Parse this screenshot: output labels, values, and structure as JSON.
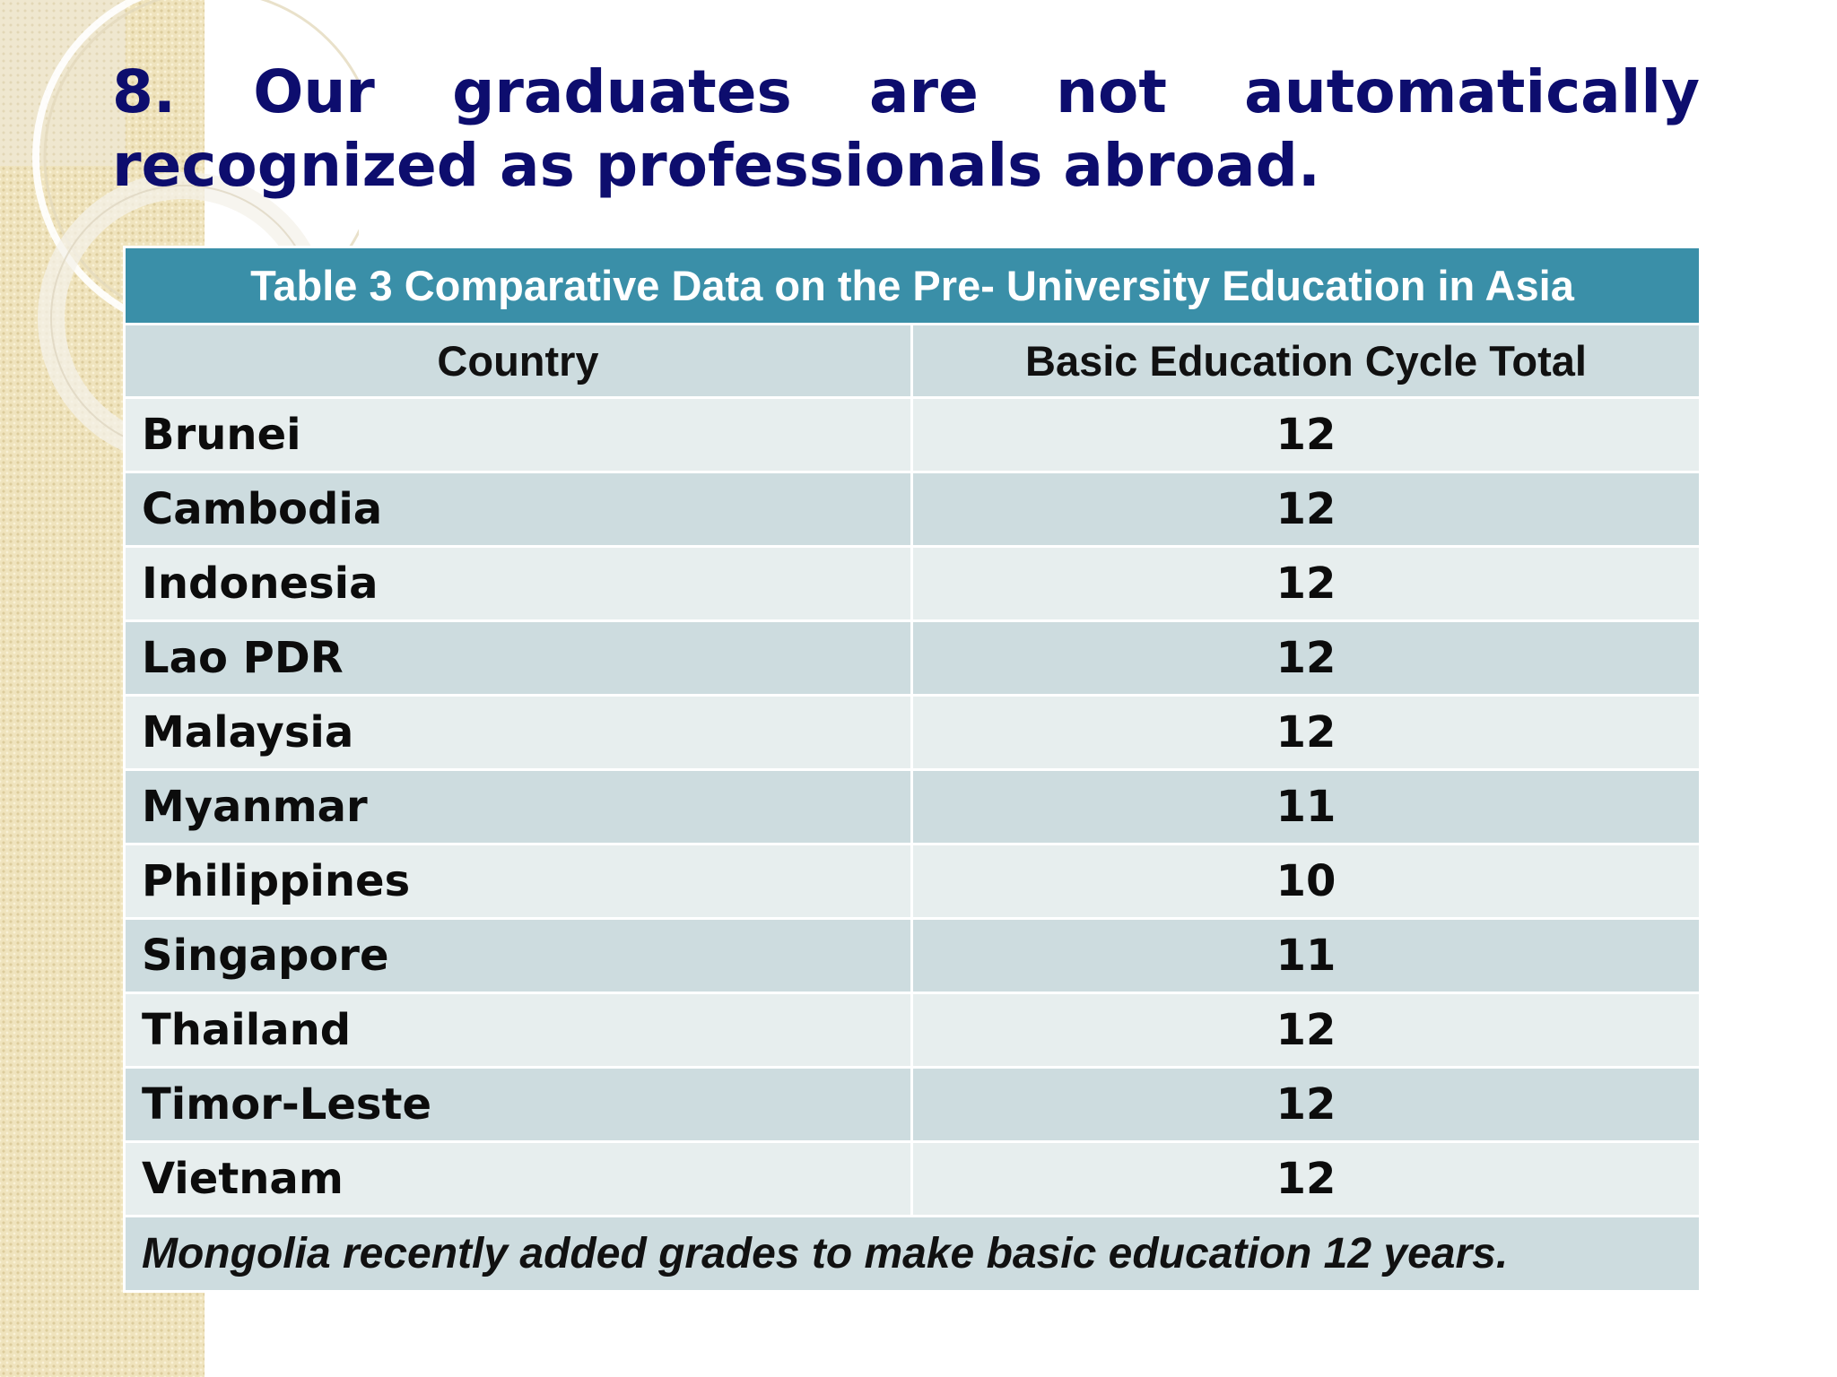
{
  "slide": {
    "title": "8. Our graduates are not automatically recognized as  professionals abroad."
  },
  "table": {
    "caption": "Table 3 Comparative Data on the Pre- University Education in Asia",
    "columns": [
      "Country",
      "Basic Education Cycle Total"
    ],
    "rows": [
      {
        "country": "Brunei",
        "years": "12"
      },
      {
        "country": "Cambodia",
        "years": "12"
      },
      {
        "country": "Indonesia",
        "years": "12"
      },
      {
        "country": "Lao PDR",
        "years": "12"
      },
      {
        "country": "Malaysia",
        "years": "12"
      },
      {
        "country": "Myanmar",
        "years": "11"
      },
      {
        "country": "Philippines",
        "years": "10"
      },
      {
        "country": "Singapore",
        "years": "11"
      },
      {
        "country": "Thailand",
        "years": "12"
      },
      {
        "country": "Timor-Leste",
        "years": "12"
      },
      {
        "country": "Vietnam",
        "years": "12"
      }
    ],
    "footnote": "Mongolia recently added grades to make basic education 12 years."
  },
  "colors": {
    "title": "#0d0d6e",
    "caption_bg": "#3a8fa8",
    "row_light": "#e7eeee",
    "row_dark": "#cddcdf",
    "sidebar": "#efe3bd"
  }
}
